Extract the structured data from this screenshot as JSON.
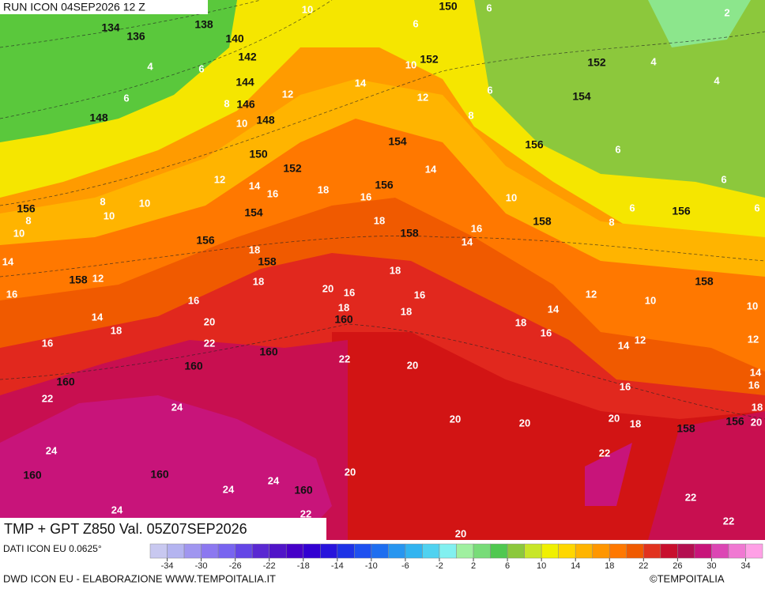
{
  "header": {
    "run": "RUN ICON 04SEP2026 12 Z"
  },
  "footer": {
    "title": "TMP + GPT Z850 Val. 05Z07SEP2026",
    "data_source": "DATI ICON EU 0.0625°",
    "credit": "DWD ICON EU - ELABORAZIONE WWW.TEMPOITALIA.IT",
    "copyright": "©TEMPOITALIA"
  },
  "map": {
    "geopotential_labels": [
      "150",
      "134",
      "136",
      "138",
      "140",
      "142",
      "144",
      "146",
      "148",
      "148",
      "150",
      "152",
      "152",
      "154",
      "154",
      "156",
      "152",
      "156",
      "156",
      "154",
      "156",
      "158",
      "158",
      "156",
      "158",
      "158",
      "158",
      "160",
      "160",
      "160",
      "160",
      "160",
      "160",
      "160",
      "158",
      "156"
    ],
    "temperature_labels": [
      "10",
      "6",
      "6",
      "2",
      "4",
      "6",
      "10",
      "14",
      "12",
      "6",
      "12",
      "6",
      "8",
      "10",
      "8",
      "4",
      "4",
      "6",
      "6",
      "14",
      "12",
      "14",
      "16",
      "18",
      "16",
      "10",
      "6",
      "6",
      "8",
      "8",
      "10",
      "10",
      "8",
      "10",
      "18",
      "16",
      "14",
      "18",
      "14",
      "12",
      "18",
      "16",
      "20",
      "16",
      "18",
      "18",
      "16",
      "16",
      "14",
      "18",
      "20",
      "12",
      "10",
      "10",
      "18",
      "14",
      "18",
      "16",
      "16",
      "22",
      "14",
      "12",
      "12",
      "22",
      "20",
      "14",
      "16",
      "16",
      "22",
      "24",
      "18",
      "20",
      "20",
      "20",
      "18",
      "20",
      "22",
      "24",
      "20",
      "24",
      "24",
      "24",
      "22",
      "22",
      "22",
      "20"
    ]
  },
  "colorbar": {
    "ticks": [
      -34,
      -30,
      -26,
      -22,
      -18,
      -14,
      -10,
      -6,
      -2,
      2,
      6,
      10,
      14,
      18,
      22,
      26,
      30,
      34
    ],
    "colors": [
      "#c8c8f0",
      "#b4b4f0",
      "#a096f0",
      "#8c78f0",
      "#7864f0",
      "#6446e6",
      "#5a28d2",
      "#5014c8",
      "#4600c8",
      "#3200d2",
      "#2814dc",
      "#1e32e6",
      "#1e50f0",
      "#1e6ef0",
      "#2896f0",
      "#32b4f0",
      "#50d2f0",
      "#82f0f0",
      "#a0f0a0",
      "#78dc78",
      "#50c850",
      "#8cc83c",
      "#c8e628",
      "#f0f000",
      "#ffd700",
      "#ffb400",
      "#ff9600",
      "#ff7800",
      "#f05a00",
      "#e1321e",
      "#c80f2d",
      "#b40f50",
      "#c8147a",
      "#dc46b4",
      "#f078d2",
      "#ffa0e6"
    ]
  }
}
